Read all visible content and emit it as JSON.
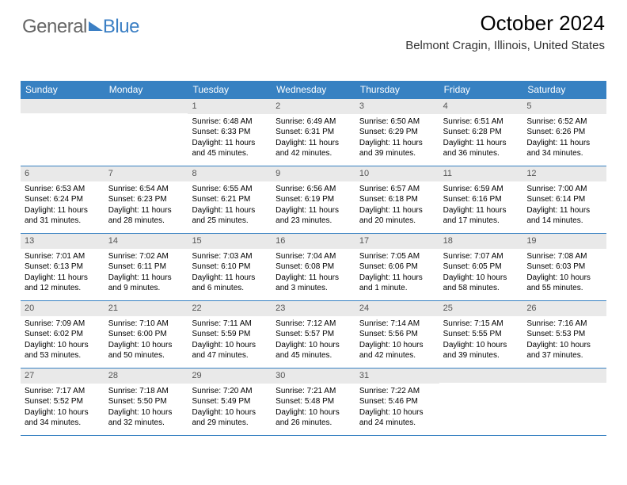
{
  "brand": {
    "w1": "General",
    "w2": "Blue"
  },
  "title": "October 2024",
  "location": "Belmont Cragin, Illinois, United States",
  "colors": {
    "header_bg": "#3781c2",
    "date_bar_bg": "#e9e9e9",
    "rule": "#3781c2"
  },
  "dow": [
    "Sunday",
    "Monday",
    "Tuesday",
    "Wednesday",
    "Thursday",
    "Friday",
    "Saturday"
  ],
  "weeks": [
    [
      {
        "date": "",
        "sr": "",
        "ss": "",
        "dl": ""
      },
      {
        "date": "",
        "sr": "",
        "ss": "",
        "dl": ""
      },
      {
        "date": "1",
        "sr": "Sunrise: 6:48 AM",
        "ss": "Sunset: 6:33 PM",
        "dl": "Daylight: 11 hours and 45 minutes."
      },
      {
        "date": "2",
        "sr": "Sunrise: 6:49 AM",
        "ss": "Sunset: 6:31 PM",
        "dl": "Daylight: 11 hours and 42 minutes."
      },
      {
        "date": "3",
        "sr": "Sunrise: 6:50 AM",
        "ss": "Sunset: 6:29 PM",
        "dl": "Daylight: 11 hours and 39 minutes."
      },
      {
        "date": "4",
        "sr": "Sunrise: 6:51 AM",
        "ss": "Sunset: 6:28 PM",
        "dl": "Daylight: 11 hours and 36 minutes."
      },
      {
        "date": "5",
        "sr": "Sunrise: 6:52 AM",
        "ss": "Sunset: 6:26 PM",
        "dl": "Daylight: 11 hours and 34 minutes."
      }
    ],
    [
      {
        "date": "6",
        "sr": "Sunrise: 6:53 AM",
        "ss": "Sunset: 6:24 PM",
        "dl": "Daylight: 11 hours and 31 minutes."
      },
      {
        "date": "7",
        "sr": "Sunrise: 6:54 AM",
        "ss": "Sunset: 6:23 PM",
        "dl": "Daylight: 11 hours and 28 minutes."
      },
      {
        "date": "8",
        "sr": "Sunrise: 6:55 AM",
        "ss": "Sunset: 6:21 PM",
        "dl": "Daylight: 11 hours and 25 minutes."
      },
      {
        "date": "9",
        "sr": "Sunrise: 6:56 AM",
        "ss": "Sunset: 6:19 PM",
        "dl": "Daylight: 11 hours and 23 minutes."
      },
      {
        "date": "10",
        "sr": "Sunrise: 6:57 AM",
        "ss": "Sunset: 6:18 PM",
        "dl": "Daylight: 11 hours and 20 minutes."
      },
      {
        "date": "11",
        "sr": "Sunrise: 6:59 AM",
        "ss": "Sunset: 6:16 PM",
        "dl": "Daylight: 11 hours and 17 minutes."
      },
      {
        "date": "12",
        "sr": "Sunrise: 7:00 AM",
        "ss": "Sunset: 6:14 PM",
        "dl": "Daylight: 11 hours and 14 minutes."
      }
    ],
    [
      {
        "date": "13",
        "sr": "Sunrise: 7:01 AM",
        "ss": "Sunset: 6:13 PM",
        "dl": "Daylight: 11 hours and 12 minutes."
      },
      {
        "date": "14",
        "sr": "Sunrise: 7:02 AM",
        "ss": "Sunset: 6:11 PM",
        "dl": "Daylight: 11 hours and 9 minutes."
      },
      {
        "date": "15",
        "sr": "Sunrise: 7:03 AM",
        "ss": "Sunset: 6:10 PM",
        "dl": "Daylight: 11 hours and 6 minutes."
      },
      {
        "date": "16",
        "sr": "Sunrise: 7:04 AM",
        "ss": "Sunset: 6:08 PM",
        "dl": "Daylight: 11 hours and 3 minutes."
      },
      {
        "date": "17",
        "sr": "Sunrise: 7:05 AM",
        "ss": "Sunset: 6:06 PM",
        "dl": "Daylight: 11 hours and 1 minute."
      },
      {
        "date": "18",
        "sr": "Sunrise: 7:07 AM",
        "ss": "Sunset: 6:05 PM",
        "dl": "Daylight: 10 hours and 58 minutes."
      },
      {
        "date": "19",
        "sr": "Sunrise: 7:08 AM",
        "ss": "Sunset: 6:03 PM",
        "dl": "Daylight: 10 hours and 55 minutes."
      }
    ],
    [
      {
        "date": "20",
        "sr": "Sunrise: 7:09 AM",
        "ss": "Sunset: 6:02 PM",
        "dl": "Daylight: 10 hours and 53 minutes."
      },
      {
        "date": "21",
        "sr": "Sunrise: 7:10 AM",
        "ss": "Sunset: 6:00 PM",
        "dl": "Daylight: 10 hours and 50 minutes."
      },
      {
        "date": "22",
        "sr": "Sunrise: 7:11 AM",
        "ss": "Sunset: 5:59 PM",
        "dl": "Daylight: 10 hours and 47 minutes."
      },
      {
        "date": "23",
        "sr": "Sunrise: 7:12 AM",
        "ss": "Sunset: 5:57 PM",
        "dl": "Daylight: 10 hours and 45 minutes."
      },
      {
        "date": "24",
        "sr": "Sunrise: 7:14 AM",
        "ss": "Sunset: 5:56 PM",
        "dl": "Daylight: 10 hours and 42 minutes."
      },
      {
        "date": "25",
        "sr": "Sunrise: 7:15 AM",
        "ss": "Sunset: 5:55 PM",
        "dl": "Daylight: 10 hours and 39 minutes."
      },
      {
        "date": "26",
        "sr": "Sunrise: 7:16 AM",
        "ss": "Sunset: 5:53 PM",
        "dl": "Daylight: 10 hours and 37 minutes."
      }
    ],
    [
      {
        "date": "27",
        "sr": "Sunrise: 7:17 AM",
        "ss": "Sunset: 5:52 PM",
        "dl": "Daylight: 10 hours and 34 minutes."
      },
      {
        "date": "28",
        "sr": "Sunrise: 7:18 AM",
        "ss": "Sunset: 5:50 PM",
        "dl": "Daylight: 10 hours and 32 minutes."
      },
      {
        "date": "29",
        "sr": "Sunrise: 7:20 AM",
        "ss": "Sunset: 5:49 PM",
        "dl": "Daylight: 10 hours and 29 minutes."
      },
      {
        "date": "30",
        "sr": "Sunrise: 7:21 AM",
        "ss": "Sunset: 5:48 PM",
        "dl": "Daylight: 10 hours and 26 minutes."
      },
      {
        "date": "31",
        "sr": "Sunrise: 7:22 AM",
        "ss": "Sunset: 5:46 PM",
        "dl": "Daylight: 10 hours and 24 minutes."
      },
      {
        "date": "",
        "sr": "",
        "ss": "",
        "dl": ""
      },
      {
        "date": "",
        "sr": "",
        "ss": "",
        "dl": ""
      }
    ]
  ]
}
